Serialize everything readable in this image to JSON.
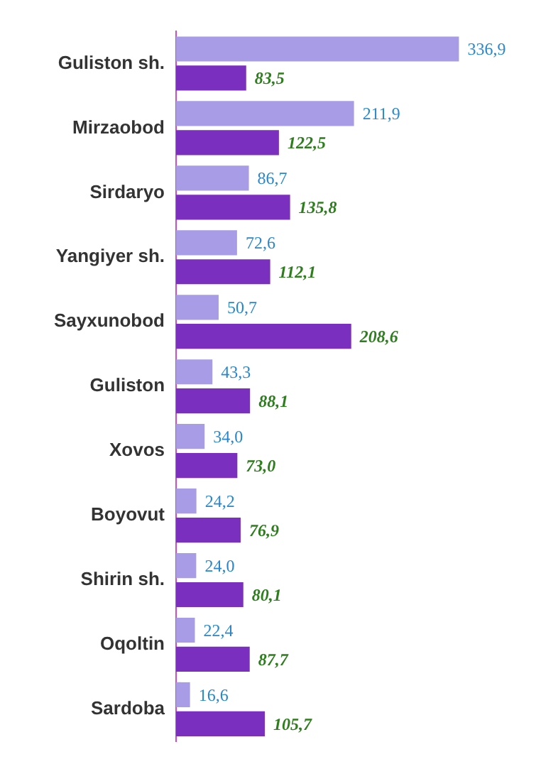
{
  "chart_data": {
    "type": "bar",
    "orientation": "horizontal",
    "legend": false,
    "tick_labels": "y",
    "categories": [
      "Guliston sh.",
      "Mirzaobod",
      "Sirdaryo",
      "Yangiyer sh.",
      "Sayxunobod",
      "Guliston",
      "Xovos",
      "Boyovut",
      "Shirin sh.",
      "Oqoltin",
      "Sardoba"
    ],
    "series": [
      {
        "color": "#a99ce6",
        "values": [
          336.9,
          211.9,
          86.7,
          72.6,
          50.7,
          43.3,
          34.0,
          24.2,
          24.0,
          22.4,
          16.6
        ],
        "value_labels": [
          "336,9",
          "211,9",
          "86,7",
          "72,6",
          "50,7",
          "43,3",
          "34,0",
          "24,2",
          "24,0",
          "22,4",
          "16,6"
        ]
      },
      {
        "color": "#7b2fbe",
        "values": [
          83.5,
          122.5,
          135.8,
          112.1,
          208.6,
          88.1,
          73.0,
          76.9,
          80.1,
          87.7,
          105.7
        ],
        "value_labels": [
          "83,5",
          "122,5",
          "135,8",
          "112,1",
          "208,6",
          "88,1",
          "73,0",
          "76,9",
          "80,1",
          "87,7",
          "105,7"
        ]
      }
    ]
  }
}
